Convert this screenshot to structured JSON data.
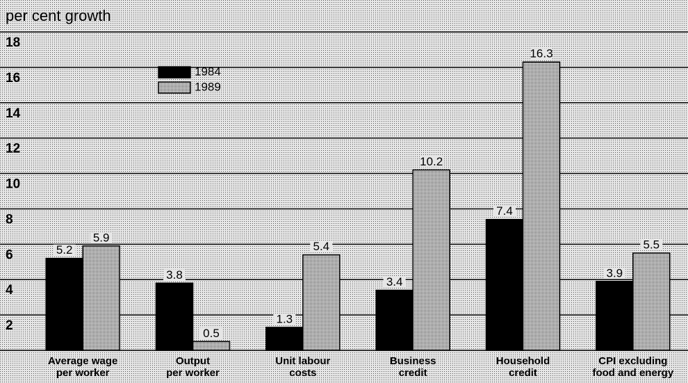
{
  "chart_data": {
    "type": "bar",
    "ylabel": "per cent growth",
    "categories": [
      "Average wage\nper worker",
      "Output\nper worker",
      "Unit labour\ncosts",
      "Business\ncredit",
      "Household\ncredit",
      "CPI excluding\nfood and energy"
    ],
    "series": [
      {
        "name": "1984",
        "color": "#000000",
        "values": [
          5.2,
          3.8,
          1.3,
          3.4,
          7.4,
          3.9
        ]
      },
      {
        "name": "1989",
        "color": "#bdbdbd",
        "values": [
          5.9,
          0.5,
          5.4,
          10.2,
          16.3,
          5.5
        ]
      }
    ],
    "ylim": [
      0,
      18
    ],
    "yticks": [
      2,
      4,
      6,
      8,
      10,
      12,
      14,
      16,
      18
    ],
    "grid": true,
    "legend": "upper left"
  }
}
